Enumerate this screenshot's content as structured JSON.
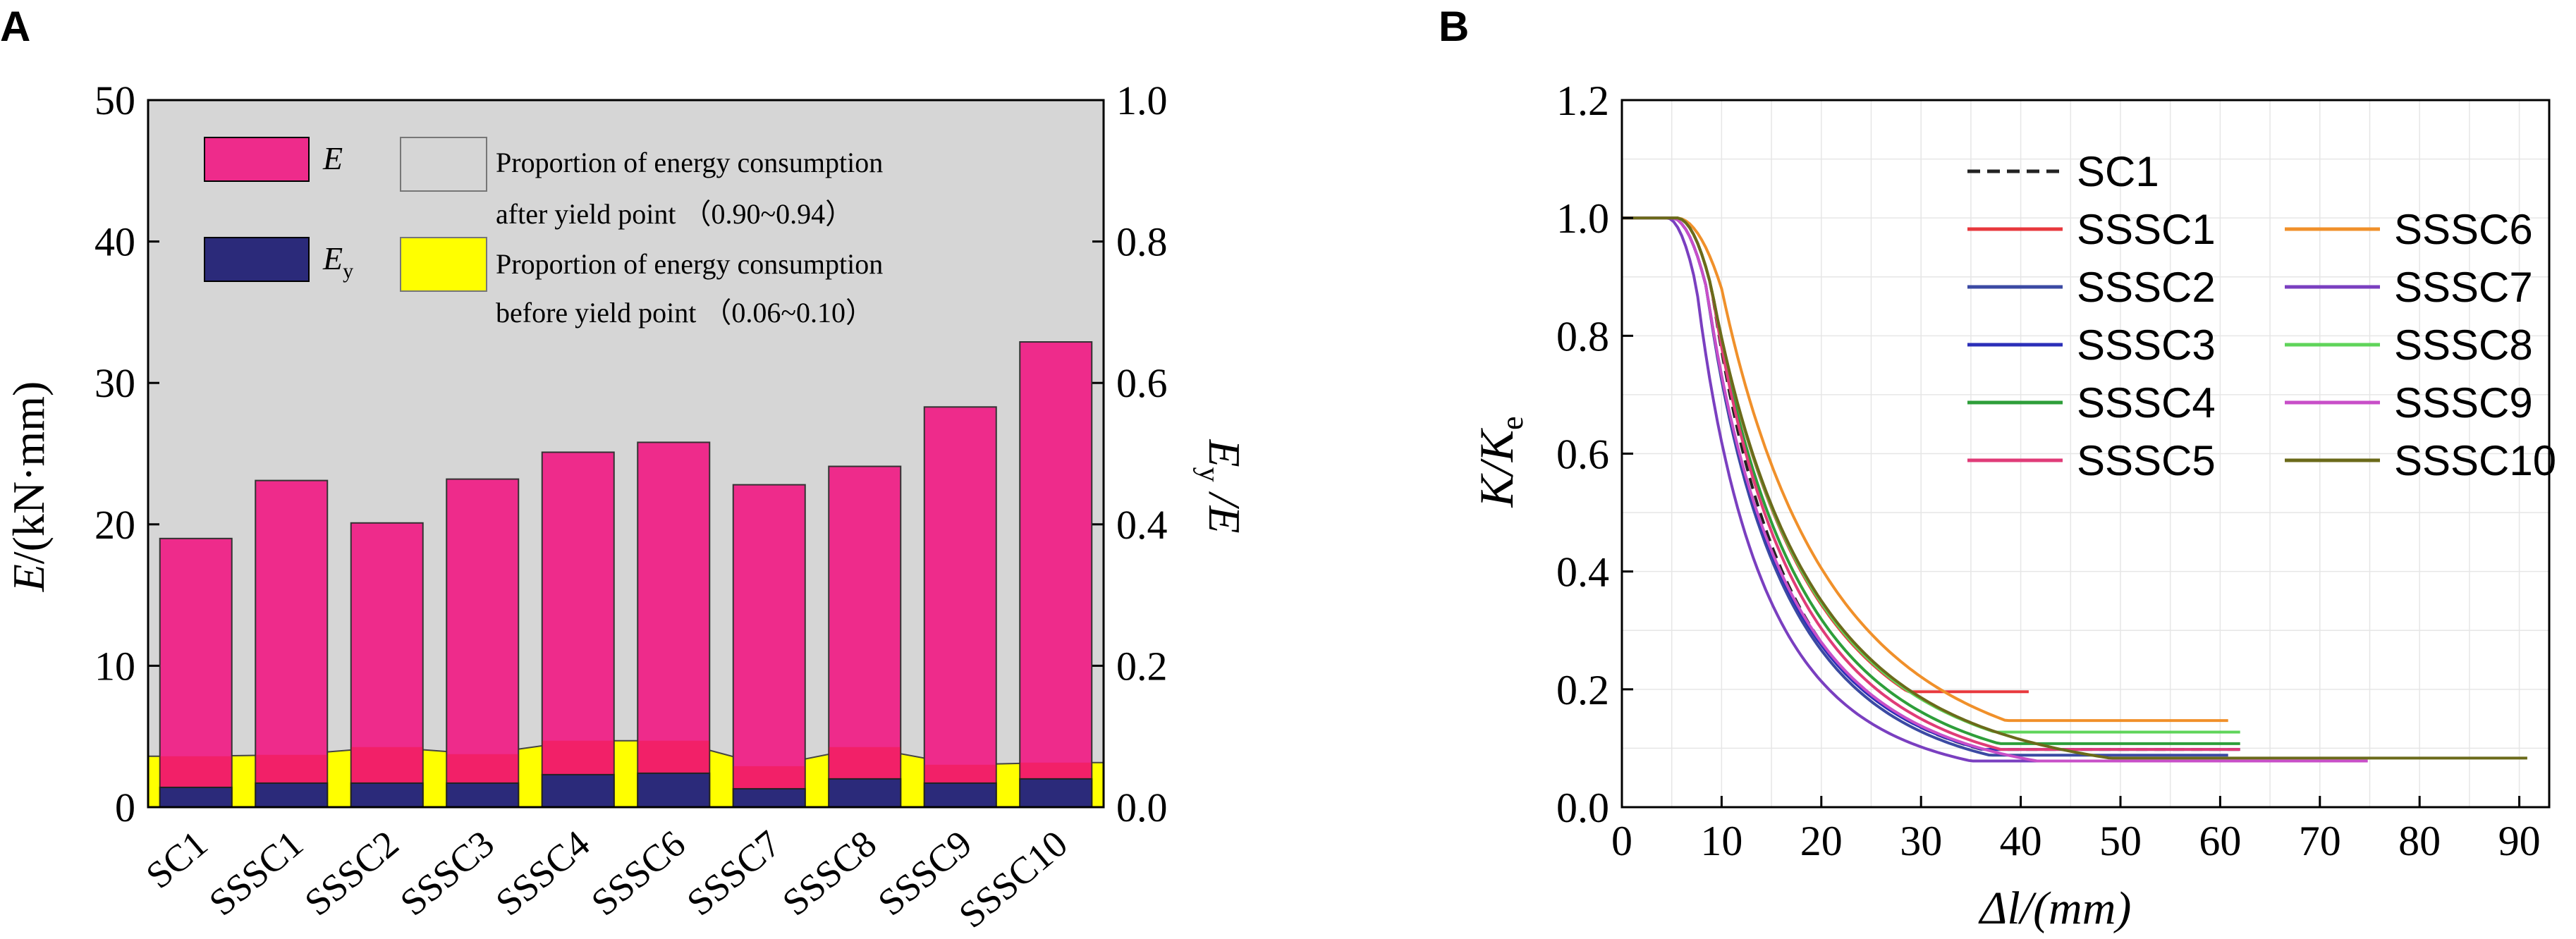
{
  "chart_data": [
    {
      "panel": "A",
      "type": "bar",
      "categories": [
        "SC1",
        "SSSC1",
        "SSSC2",
        "SSSC3",
        "SSSC4",
        "SSSC6",
        "SSSC7",
        "SSSC8",
        "SSSC9",
        "SSSC10"
      ],
      "series": [
        {
          "name": "E",
          "values": [
            19.0,
            23.1,
            20.1,
            23.2,
            25.1,
            25.8,
            22.8,
            24.1,
            28.3,
            32.9
          ],
          "color": "#ee2b8b"
        },
        {
          "name": "Ey",
          "values": [
            1.4,
            1.7,
            1.7,
            1.7,
            2.3,
            2.4,
            1.3,
            2.0,
            1.7,
            2.0
          ],
          "color": "#2b2a7a"
        }
      ],
      "ratio_area": {
        "name": "Ey/E",
        "values": [
          0.072,
          0.074,
          0.085,
          0.075,
          0.094,
          0.094,
          0.058,
          0.085,
          0.06,
          0.063
        ]
      },
      "left_axis": {
        "label_main": "E",
        "label_unit": "/(kN·mm)",
        "ylim": [
          0,
          50
        ],
        "ticks": [
          0,
          10,
          20,
          30,
          40,
          50
        ]
      },
      "right_axis": {
        "label_a": "E",
        "label_sub": "y",
        "label_b": " /E",
        "ylim": [
          0,
          1.0
        ],
        "ticks": [
          "0.0",
          "0.2",
          "0.4",
          "0.6",
          "0.8",
          "1.0"
        ]
      },
      "legend": {
        "e_label": "E",
        "ey_label_main": "E",
        "ey_label_sub": "y",
        "after_line1": "Proportion of energy consumption",
        "after_line2": "after yield point （0.90~0.94）",
        "before_line1": "Proportion of energy consumption",
        "before_line2": "before yield point （0.06~0.10）",
        "after_color": "#d6d6d6",
        "before_color": "#ffff00"
      }
    },
    {
      "panel": "B",
      "type": "line",
      "xlabel_italic": "Δ",
      "xlabel_unit": "l/(mm)",
      "ylabel_main": "K",
      "ylabel_mid": "/K",
      "ylabel_sub": "e",
      "xlim": [
        0,
        93
      ],
      "ylim": [
        0,
        1.2
      ],
      "x_ticks": [
        0,
        10,
        20,
        30,
        40,
        50,
        60,
        70,
        80,
        90
      ],
      "y_ticks": [
        "0.0",
        "0.2",
        "0.4",
        "0.6",
        "0.8",
        "1.0",
        "1.2"
      ],
      "series": [
        {
          "name": "SC1",
          "color": "#222222",
          "dashed": true,
          "x0": 5.5,
          "x1": 9.0,
          "tau": 8.3,
          "k_end": 0.1,
          "x_end": 62
        },
        {
          "name": "SSSC1",
          "color": "#e8383d",
          "dashed": false,
          "x0": 5.5,
          "x1": 9.0,
          "tau": 10.0,
          "k_end": 0.2,
          "x_end": 41
        },
        {
          "name": "SSSC2",
          "color": "#3b4aa3",
          "dashed": false,
          "x0": 5.0,
          "x1": 8.5,
          "tau": 8.8,
          "k_end": 0.09,
          "x_end": 61
        },
        {
          "name": "SSSC3",
          "color": "#2b2fb8",
          "dashed": false,
          "x0": 5.0,
          "x1": 8.5,
          "tau": 8.6,
          "k_end": 0.1,
          "x_end": 62
        },
        {
          "name": "SSSC4",
          "color": "#2e9e3a",
          "dashed": false,
          "x0": 5.5,
          "x1": 9.0,
          "tau": 9.8,
          "k_end": 0.11,
          "x_end": 62
        },
        {
          "name": "SSSC5",
          "color": "#e03c78",
          "dashed": false,
          "x0": 5.5,
          "x1": 9.0,
          "tau": 9.5,
          "k_end": 0.1,
          "x_end": 62
        },
        {
          "name": "SSSC6",
          "color": "#f0902a",
          "dashed": false,
          "x0": 5.5,
          "x1": 10.0,
          "tau": 11.5,
          "k_end": 0.15,
          "x_end": 61
        },
        {
          "name": "SSSC7",
          "color": "#7a3fc0",
          "dashed": false,
          "x0": 4.5,
          "x1": 7.5,
          "tau": 7.6,
          "k_end": 0.08,
          "x_end": 62
        },
        {
          "name": "SSSC8",
          "color": "#5fd45a",
          "dashed": false,
          "x0": 5.5,
          "x1": 9.0,
          "tau": 10.3,
          "k_end": 0.13,
          "x_end": 62
        },
        {
          "name": "SSSC9",
          "color": "#c84fc8",
          "dashed": false,
          "x0": 5.0,
          "x1": 8.5,
          "tau": 9.0,
          "k_end": 0.08,
          "x_end": 75
        },
        {
          "name": "SSSC10",
          "color": "#6b6a1a",
          "dashed": false,
          "x0": 5.5,
          "x1": 9.0,
          "tau": 10.8,
          "k_end": 0.085,
          "x_end": 91
        }
      ]
    }
  ],
  "labels": {
    "panel_a": "A",
    "panel_b": "B"
  }
}
